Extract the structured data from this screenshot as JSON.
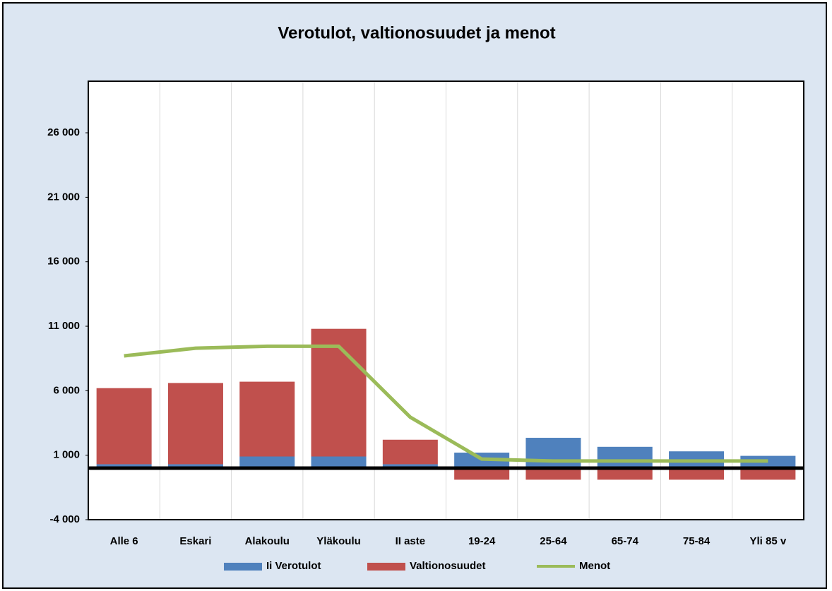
{
  "chart_data": {
    "type": "bar",
    "title": "Verotulot, valtionosuudet ja menot",
    "categories": [
      "Alle 6",
      "Eskari",
      "Alakoulu",
      "Yläkoulu",
      "II aste",
      "19-24",
      "25-64",
      "65-74",
      "75-84",
      "Yli 85 v"
    ],
    "series": [
      {
        "name": "Ii Verotulot",
        "color": "#4f81bd",
        "type": "bar",
        "values": [
          300,
          300,
          900,
          900,
          300,
          1200,
          2350,
          1650,
          1300,
          950
        ]
      },
      {
        "name": "Valtionosuudet",
        "color": "#c0504d",
        "type": "bar",
        "values": [
          5900,
          6300,
          5800,
          9900,
          1900,
          -900,
          -900,
          -900,
          -900,
          -900
        ]
      },
      {
        "name": "Menot",
        "color": "#9bbb59",
        "type": "line",
        "values": [
          8700,
          9300,
          9450,
          9450,
          3950,
          700,
          550,
          550,
          550,
          550
        ]
      }
    ],
    "ylim": [
      -4000,
      30000
    ],
    "yticks": [
      {
        "value": -4000,
        "label": "-4 000"
      },
      {
        "value": 1000,
        "label": "1 000"
      },
      {
        "value": 6000,
        "label": "6 000"
      },
      {
        "value": 11000,
        "label": "11 000"
      },
      {
        "value": 16000,
        "label": "16 000"
      },
      {
        "value": 21000,
        "label": "21 000"
      },
      {
        "value": 26000,
        "label": "26 000"
      }
    ],
    "stacked": true
  }
}
